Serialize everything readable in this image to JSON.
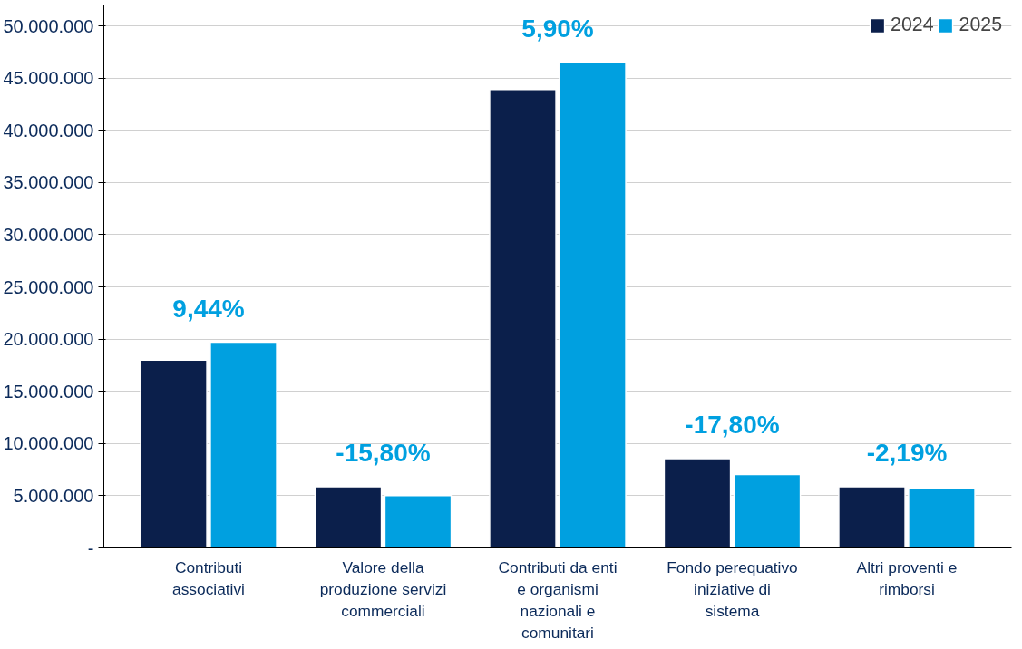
{
  "chart_data": {
    "type": "bar",
    "categories": [
      "Contributi associativi",
      "Valore della produzione servizi commerciali",
      "Contributi da enti e organismi nazionali e comunitari",
      "Fondo perequativo iniziative di sistema",
      "Altri proventi e rimborsi"
    ],
    "series": [
      {
        "name": "2024",
        "color": "#0b1f4b",
        "values": [
          18000000,
          5850000,
          43900000,
          8550000,
          5850000
        ]
      },
      {
        "name": "2025",
        "color": "#00a0e0",
        "values": [
          19700000,
          5020000,
          46500000,
          7030000,
          5720000
        ]
      }
    ],
    "annotations": [
      {
        "text": "9,44%",
        "x": "Contributi associativi",
        "y": 19700000
      },
      {
        "text": "-15,80%",
        "x": "Valore della produzione servizi commerciali",
        "y": 5850000
      },
      {
        "text": "5,90%",
        "x": "Contributi da enti e organismi nazionali e comunitari",
        "y": 46500000
      },
      {
        "text": "-17,80%",
        "x": "Fondo perequativo iniziative di sistema",
        "y": 8550000
      },
      {
        "text": "-2,19%",
        "x": "Altri proventi e rimborsi",
        "y": 5850000
      }
    ],
    "ylim": [
      0,
      52000000
    ],
    "yticks": [
      {
        "value": 0,
        "label": "-"
      },
      {
        "value": 5000000,
        "label": "5.000.000"
      },
      {
        "value": 10000000,
        "label": "10.000.000"
      },
      {
        "value": 15000000,
        "label": "15.000.000"
      },
      {
        "value": 20000000,
        "label": "20.000.000"
      },
      {
        "value": 25000000,
        "label": "25.000.000"
      },
      {
        "value": 30000000,
        "label": "30.000.000"
      },
      {
        "value": 35000000,
        "label": "35.000.000"
      },
      {
        "value": 40000000,
        "label": "40.000.000"
      },
      {
        "value": 45000000,
        "label": "45.000.000"
      },
      {
        "value": 50000000,
        "label": "50.000.000"
      }
    ],
    "grid": "y",
    "legend": "top right"
  }
}
